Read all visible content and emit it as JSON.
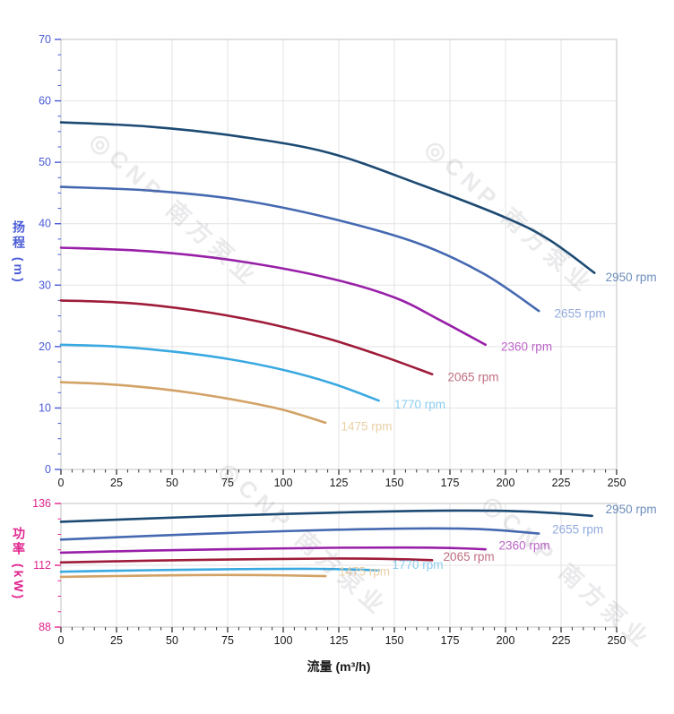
{
  "watermark": {
    "text": "◎CNP 南方泵业"
  },
  "axis_colors": {
    "head_axis": "#4a5cd6",
    "power_axis": "#e0258f",
    "x_tick_text": "#1a1a1a",
    "grid": "#e3e3e3",
    "frame": "#cccccc",
    "x_tick_mark": "#333333"
  },
  "chart_data": [
    {
      "type": "line",
      "name": "head-vs-flow",
      "xlabel": "流量 (m³/h)",
      "ylabel": "扬程 (m)",
      "xlim": [
        0,
        250
      ],
      "ylim": [
        0,
        70
      ],
      "grid": true,
      "x_major_ticks": [
        0,
        25,
        50,
        75,
        100,
        125,
        150,
        175,
        200,
        225,
        250
      ],
      "x_tick_labels": [
        "0",
        "25",
        "50",
        "75",
        "100",
        "125",
        "150",
        "175",
        "200",
        "225",
        "250"
      ],
      "x_minor_step": 5,
      "y_major_ticks": [
        0,
        10,
        20,
        30,
        40,
        50,
        60,
        70
      ],
      "y_tick_labels": [
        "0",
        "10",
        "20",
        "30",
        "40",
        "50",
        "60",
        "70"
      ],
      "y_minor_step": 2.5,
      "series": [
        {
          "name": "2950 rpm",
          "color": "#1c4a73",
          "label_color": "#6e8ebd",
          "label_at": [
            245,
            31.3
          ],
          "points": [
            [
              0,
              56.5
            ],
            [
              40,
              55.8
            ],
            [
              80,
              54.2
            ],
            [
              120,
              51.6
            ],
            [
              160,
              46.6
            ],
            [
              200,
              41.0
            ],
            [
              220,
              37.3
            ],
            [
              240,
              32.0
            ]
          ]
        },
        {
          "name": "2655 rpm",
          "color": "#4569b1",
          "label_color": "#93abdf",
          "label_at": [
            222,
            25.4
          ],
          "points": [
            [
              0,
              46.0
            ],
            [
              40,
              45.4
            ],
            [
              80,
              43.9
            ],
            [
              120,
              41.0
            ],
            [
              160,
              36.9
            ],
            [
              190,
              31.9
            ],
            [
              215,
              25.8
            ]
          ]
        },
        {
          "name": "2360 rpm",
          "color": "#981fa8",
          "label_color": "#bd65c8",
          "label_at": [
            198,
            20.0
          ],
          "points": [
            [
              0,
              36.1
            ],
            [
              40,
              35.5
            ],
            [
              80,
              33.9
            ],
            [
              120,
              31.2
            ],
            [
              150,
              28.0
            ],
            [
              170,
              24.4
            ],
            [
              191,
              20.3
            ]
          ]
        },
        {
          "name": "2065 rpm",
          "color": "#9e1c39",
          "label_color": "#bf6f80",
          "label_at": [
            174,
            15.0
          ],
          "points": [
            [
              0,
              27.5
            ],
            [
              30,
              27.1
            ],
            [
              60,
              25.9
            ],
            [
              90,
              24.0
            ],
            [
              120,
              21.3
            ],
            [
              145,
              18.4
            ],
            [
              167,
              15.5
            ]
          ]
        },
        {
          "name": "1770 rpm",
          "color": "#3aa9e1",
          "label_color": "#8ccdf0",
          "label_at": [
            150,
            10.6
          ],
          "points": [
            [
              0,
              20.3
            ],
            [
              25,
              20.0
            ],
            [
              50,
              19.2
            ],
            [
              75,
              18.0
            ],
            [
              100,
              16.2
            ],
            [
              122,
              14.0
            ],
            [
              143,
              11.2
            ]
          ]
        },
        {
          "name": "1475 rpm",
          "color": "#d2a266",
          "label_color": "#ead0a5",
          "label_at": [
            126,
            7.0
          ],
          "points": [
            [
              0,
              14.2
            ],
            [
              20,
              13.9
            ],
            [
              40,
              13.3
            ],
            [
              60,
              12.4
            ],
            [
              80,
              11.2
            ],
            [
              100,
              9.7
            ],
            [
              119,
              7.6
            ]
          ]
        }
      ]
    },
    {
      "type": "line",
      "name": "power-vs-flow",
      "xlabel": "流量 (m³/h)",
      "ylabel": "功率 (kW)",
      "xlim": [
        0,
        250
      ],
      "ylim": [
        88,
        136
      ],
      "grid": true,
      "x_major_ticks": [
        0,
        25,
        50,
        75,
        100,
        125,
        150,
        175,
        200,
        225,
        250
      ],
      "x_tick_labels": [
        "0",
        "25",
        "50",
        "75",
        "100",
        "125",
        "150",
        "175",
        "200",
        "225",
        "250"
      ],
      "x_minor_step": 5,
      "y_major_ticks": [
        88,
        112,
        136
      ],
      "y_tick_labels": [
        "88",
        "112",
        "136"
      ],
      "y_minor_step": 6,
      "series": [
        {
          "name": "2950 rpm",
          "color": "#1c4a73",
          "label_color": "#6e8ebd",
          "label_at": [
            245,
            133.7
          ],
          "points": [
            [
              0,
              128.9
            ],
            [
              40,
              130.2
            ],
            [
              80,
              131.4
            ],
            [
              120,
              132.4
            ],
            [
              160,
              133.1
            ],
            [
              195,
              133.2
            ],
            [
              220,
              132.4
            ],
            [
              239,
              131.2
            ]
          ]
        },
        {
          "name": "2655 rpm",
          "color": "#4569b1",
          "label_color": "#93abdf",
          "label_at": [
            221,
            125.9
          ],
          "points": [
            [
              0,
              122.0
            ],
            [
              40,
              123.4
            ],
            [
              80,
              124.7
            ],
            [
              120,
              125.7
            ],
            [
              160,
              126.3
            ],
            [
              190,
              126.0
            ],
            [
              215,
              124.3
            ]
          ]
        },
        {
          "name": "2360 rpm",
          "color": "#981fa8",
          "label_color": "#bd65c8",
          "label_at": [
            197,
            119.7
          ],
          "points": [
            [
              0,
              116.9
            ],
            [
              40,
              117.7
            ],
            [
              80,
              118.3
            ],
            [
              120,
              118.8
            ],
            [
              155,
              118.9
            ],
            [
              175,
              118.7
            ],
            [
              191,
              118.2
            ]
          ]
        },
        {
          "name": "2065 rpm",
          "color": "#9e1c39",
          "label_color": "#bf6f80",
          "label_at": [
            172,
            115.3
          ],
          "points": [
            [
              0,
              113.1
            ],
            [
              40,
              113.8
            ],
            [
              80,
              114.3
            ],
            [
              120,
              114.6
            ],
            [
              145,
              114.5
            ],
            [
              167,
              114.0
            ]
          ]
        },
        {
          "name": "1770 rpm",
          "color": "#3aa9e1",
          "label_color": "#8ccdf0",
          "label_at": [
            149,
            112.2
          ],
          "points": [
            [
              0,
              109.5
            ],
            [
              40,
              110.1
            ],
            [
              80,
              110.5
            ],
            [
              115,
              110.6
            ],
            [
              143,
              110.1
            ]
          ]
        },
        {
          "name": "1475 rpm",
          "color": "#d2a266",
          "label_color": "#ead0a5",
          "label_at": [
            125,
            109.6
          ],
          "points": [
            [
              0,
              107.5
            ],
            [
              30,
              107.9
            ],
            [
              60,
              108.2
            ],
            [
              90,
              108.2
            ],
            [
              119,
              107.8
            ]
          ]
        }
      ]
    }
  ]
}
